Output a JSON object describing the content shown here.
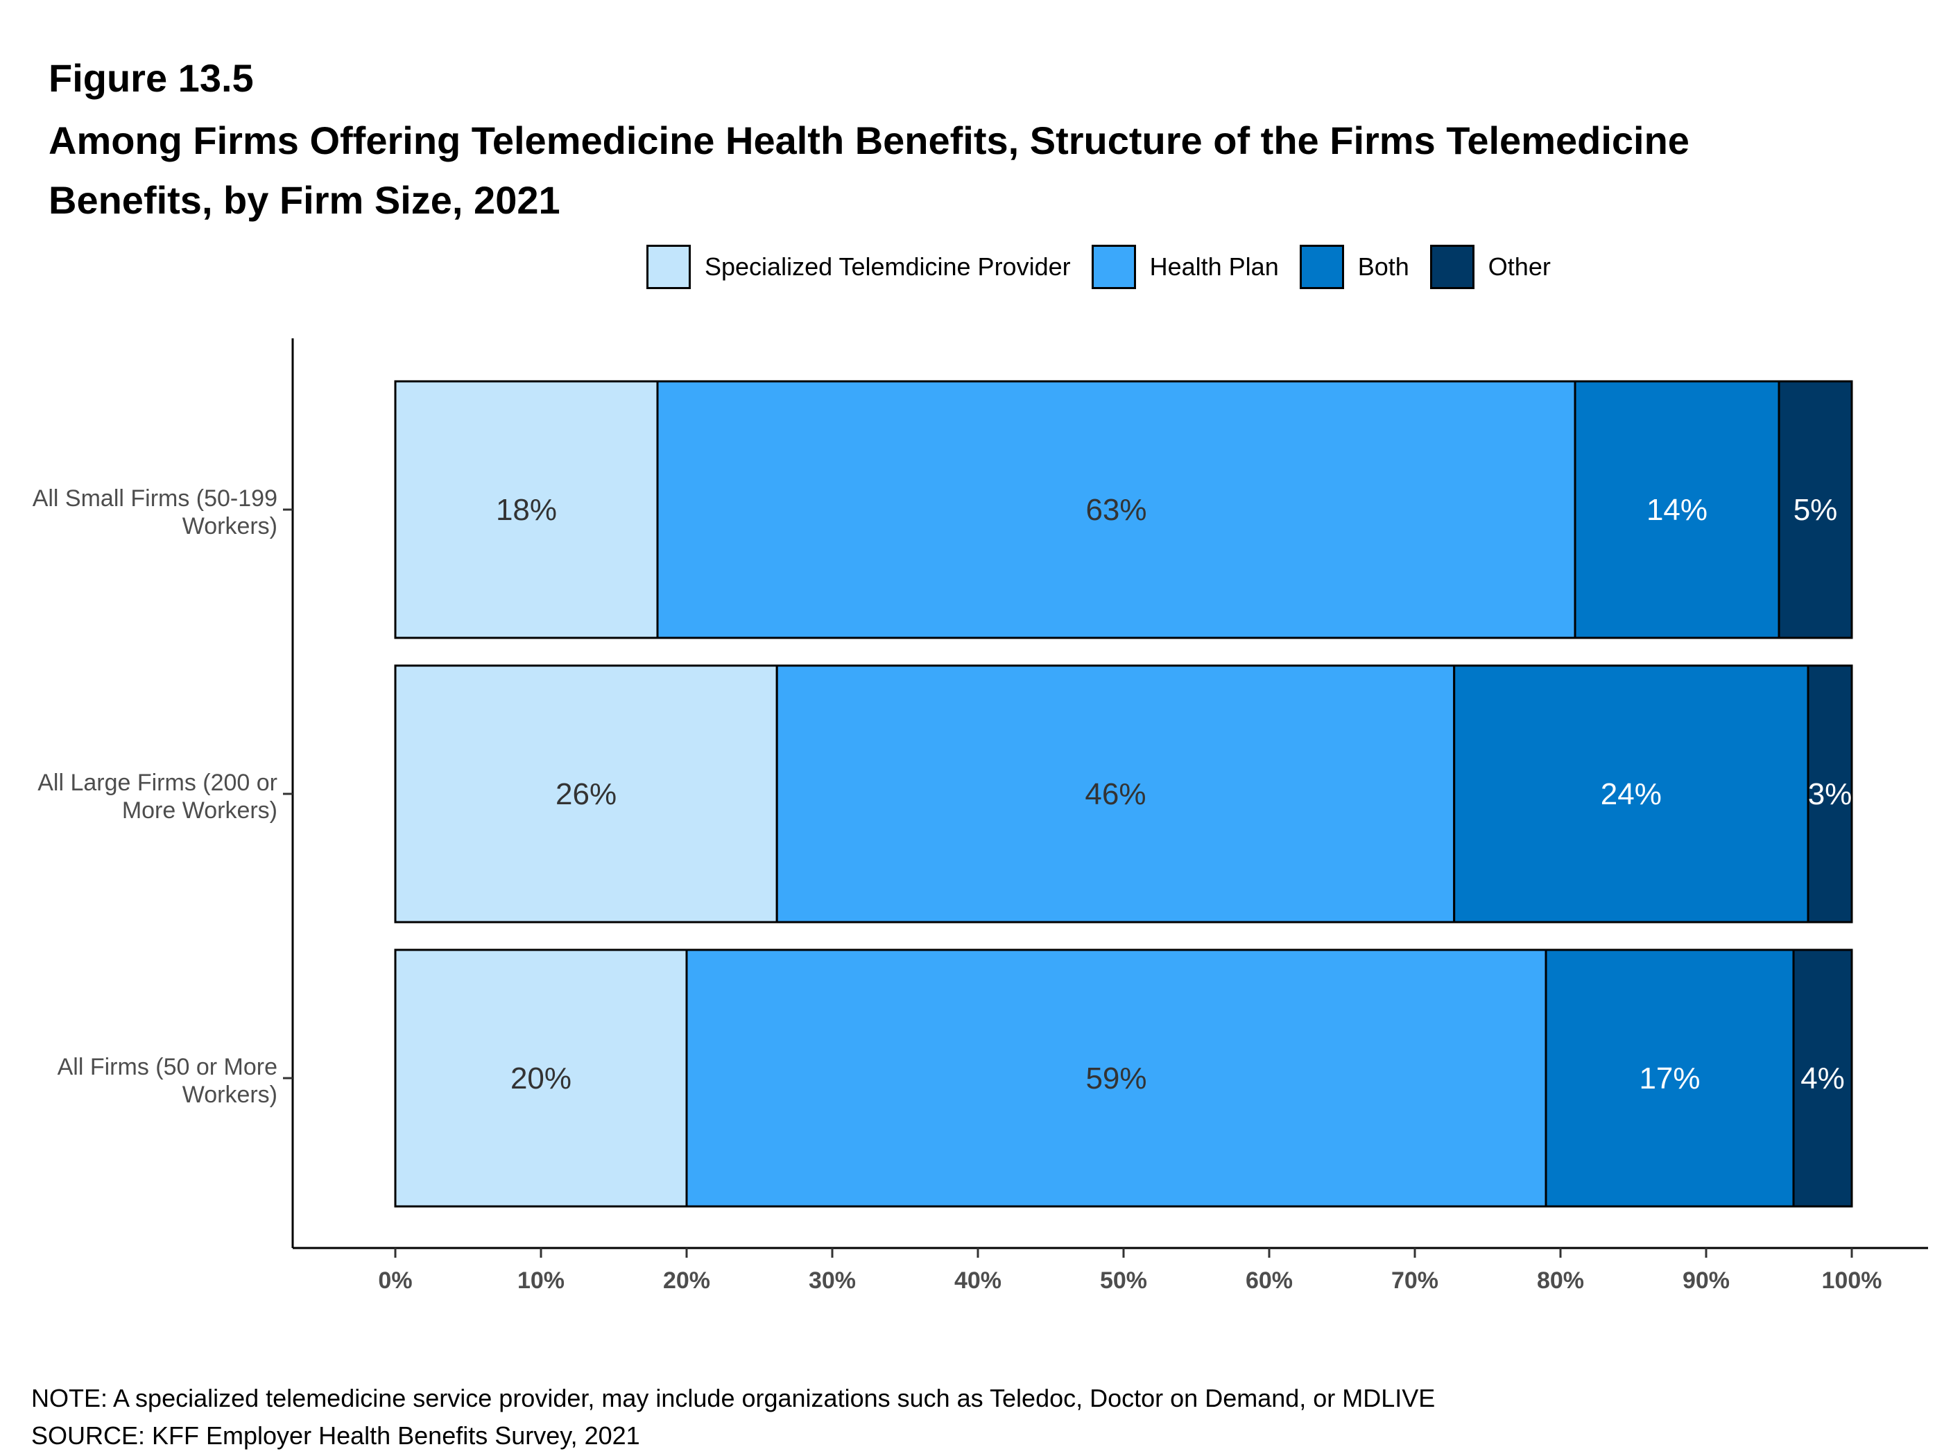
{
  "figure_label": "Figure 13.5",
  "title": "Among Firms Offering Telemedicine Health Benefits, Structure of the Firms Telemedicine Benefits, by Firm Size, 2021",
  "note": "NOTE: A specialized telemedicine service provider, may include organizations such as Teledoc, Doctor on Demand, or MDLIVE",
  "source": "SOURCE: KFF Employer Health Benefits Survey, 2021",
  "chart_data": {
    "type": "bar",
    "orientation": "horizontal",
    "stacked": true,
    "categories": [
      [
        "All Small Firms (50-199",
        "Workers)"
      ],
      [
        "All Large Firms (200 or",
        "More Workers)"
      ],
      [
        "All Firms (50 or More",
        "Workers)"
      ]
    ],
    "series": [
      {
        "name": "Specialized Telemdicine Provider",
        "color": "#c2e5fc",
        "label_color": "#333333",
        "values": [
          18,
          26.2,
          20
        ],
        "labels": [
          "18%",
          "26%",
          "20%"
        ]
      },
      {
        "name": "Health Plan",
        "color": "#3ba8fb",
        "label_color": "#333333",
        "values": [
          63,
          46.5,
          59
        ],
        "labels": [
          "63%",
          "46%",
          "59%"
        ]
      },
      {
        "name": "Both",
        "color": "#0077c8",
        "label_color": "#ffffff",
        "values": [
          14,
          24.3,
          17
        ],
        "labels": [
          "14%",
          "24%",
          "17%"
        ]
      },
      {
        "name": "Other",
        "color": "#003865",
        "label_color": "#ffffff",
        "values": [
          5,
          3,
          4
        ],
        "labels": [
          "5%",
          "3%",
          "4%"
        ]
      }
    ],
    "xlim": [
      -7,
      100
    ],
    "xticks": [
      0,
      10,
      20,
      30,
      40,
      50,
      60,
      70,
      80,
      90,
      100
    ],
    "xtick_labels": [
      "0%",
      "10%",
      "20%",
      "30%",
      "40%",
      "50%",
      "60%",
      "70%",
      "80%",
      "90%",
      "100%"
    ],
    "legend_position": "top",
    "grid": false
  }
}
